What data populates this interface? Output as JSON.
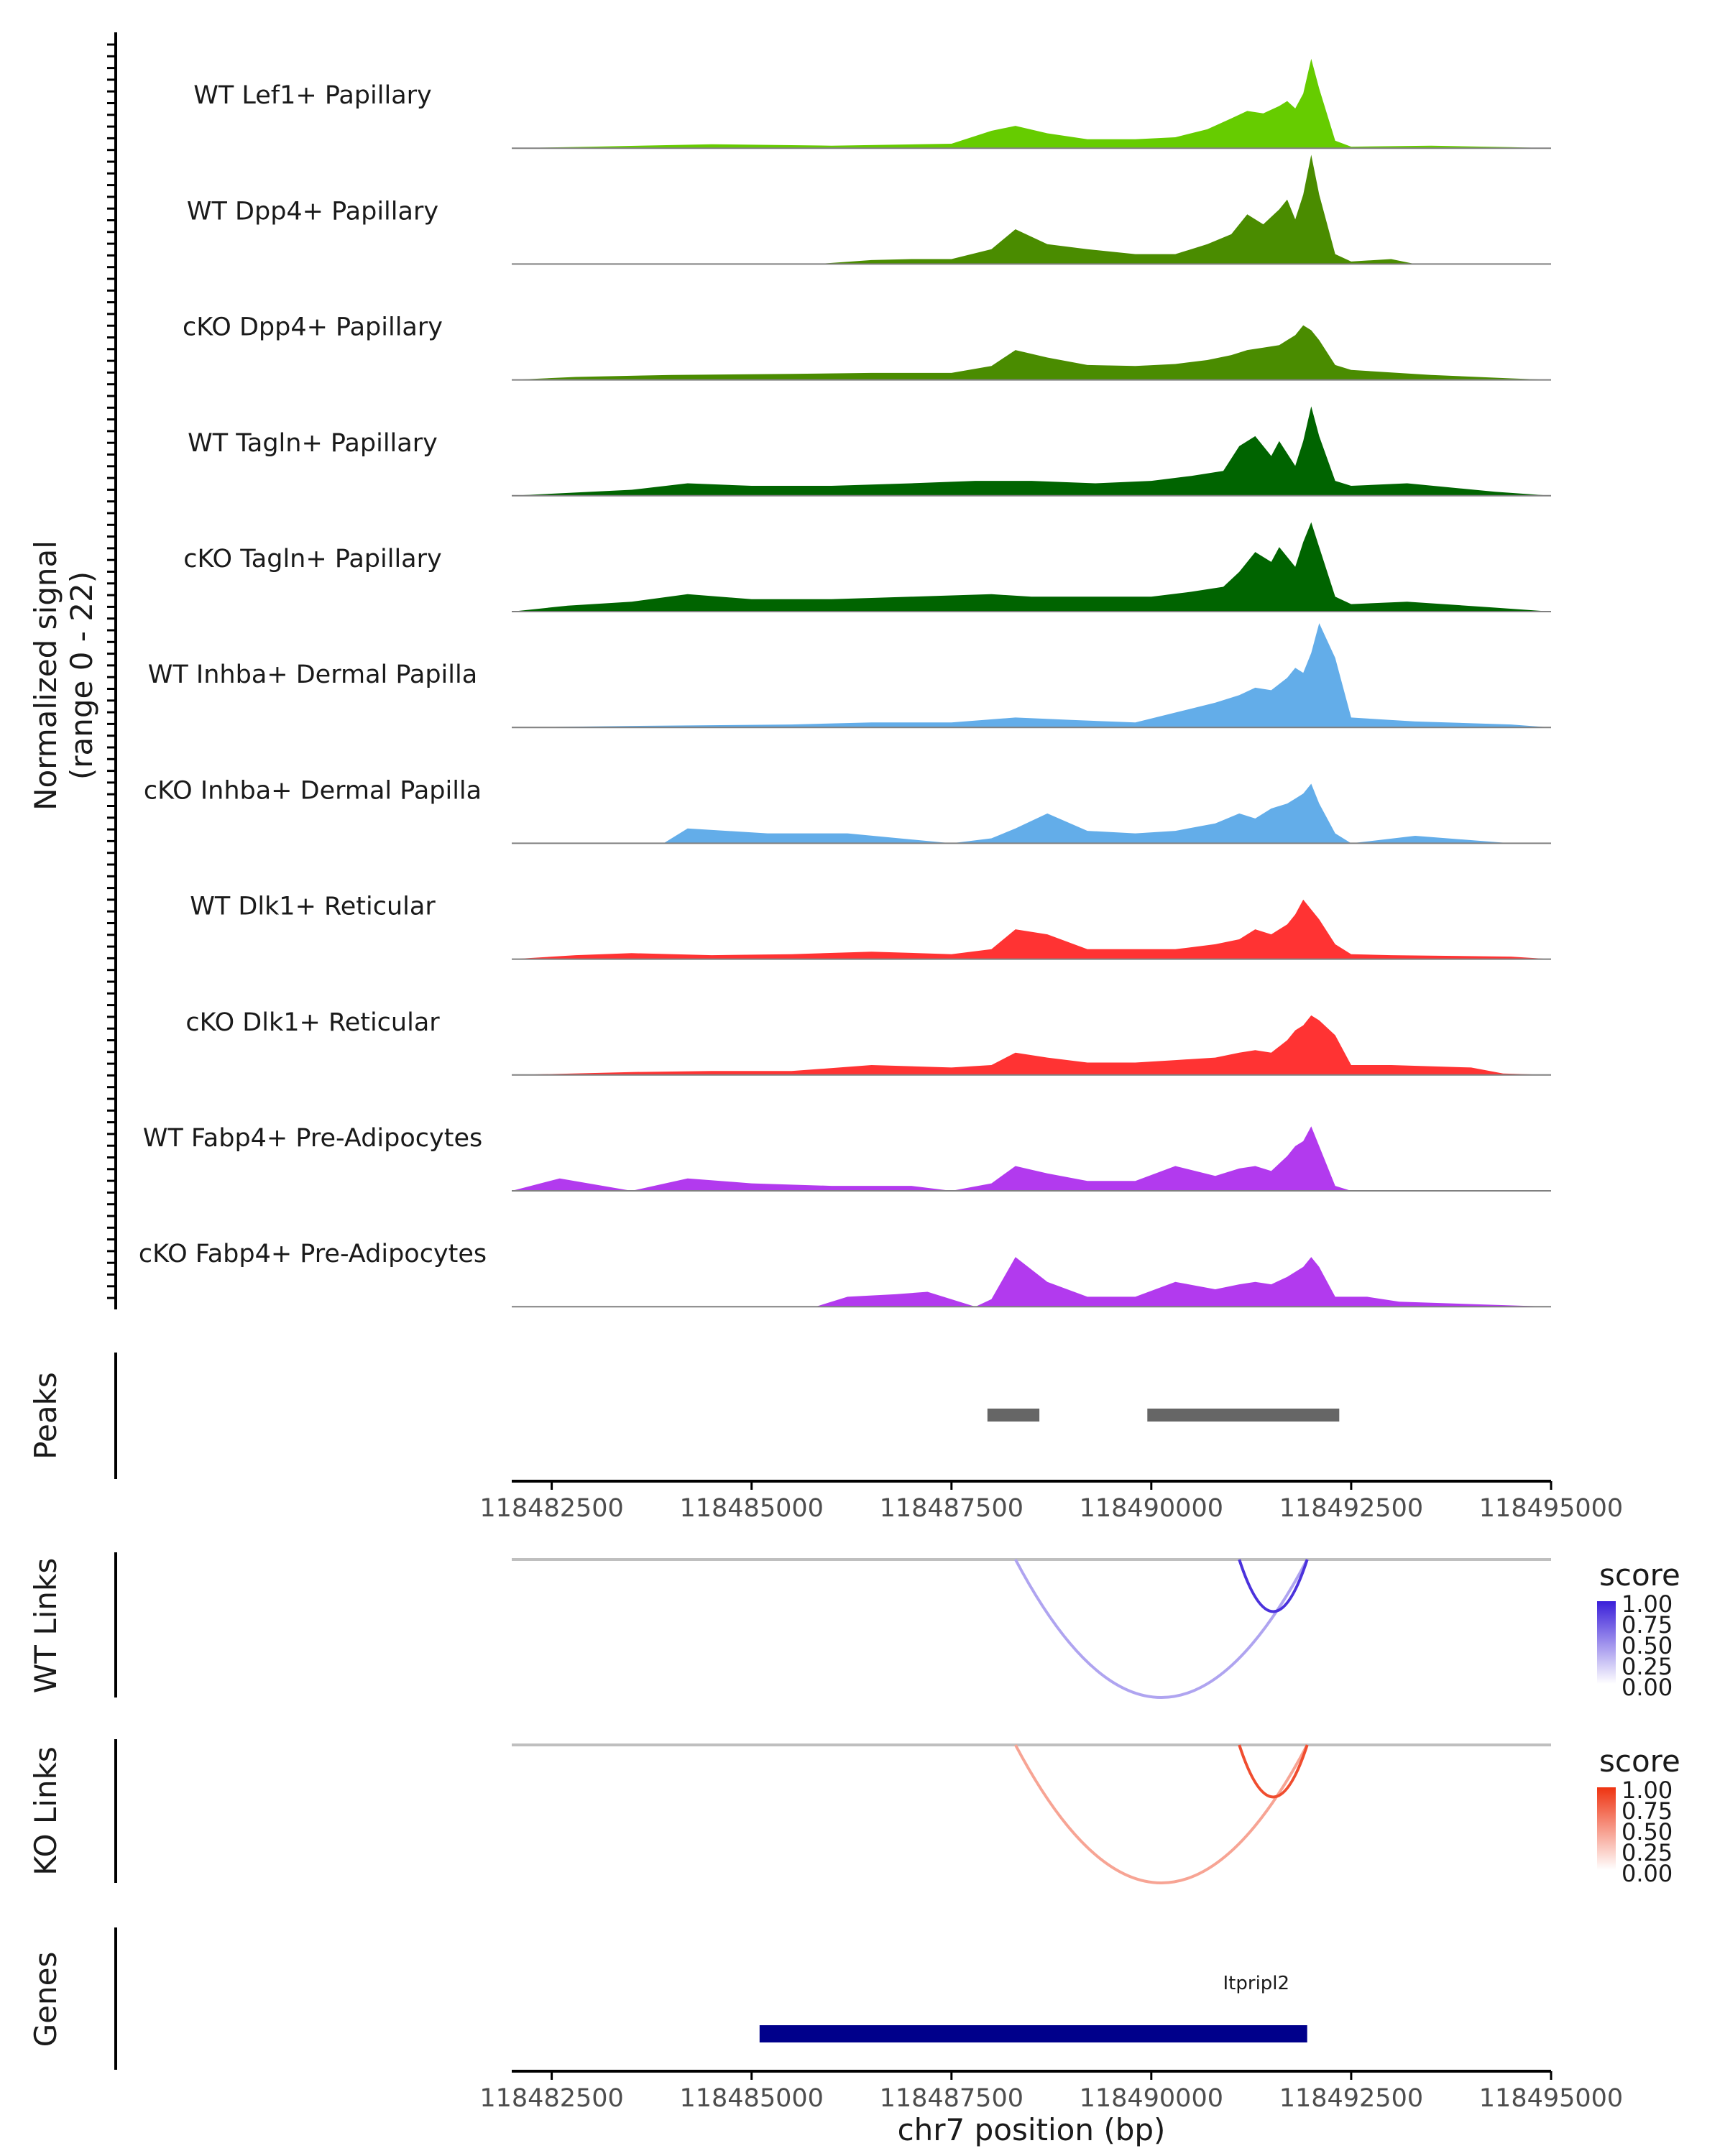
{
  "chart_data": {
    "type": "area",
    "title": "",
    "xlabel": "chr7 position (bp)",
    "x_ticks": [
      "118482500",
      "118485000",
      "118487500",
      "118490000",
      "118492500",
      "118495000"
    ],
    "x_tick_values": [
      118482500,
      118485000,
      118487500,
      118490000,
      118492500,
      118495000
    ],
    "xlim": [
      118482000,
      118495000
    ],
    "coverage": {
      "ylabel_line1": "Normalized signal",
      "ylabel_line2": "(range 0 - 22)",
      "ylim": [
        0,
        22
      ],
      "tracks": [
        {
          "name": "WT Lef1+ Papillary",
          "color": "#66cc00",
          "x": [
            118482000,
            118483000,
            118484500,
            118486000,
            118487500,
            118488000,
            118488300,
            118488700,
            118489200,
            118489800,
            118490300,
            118490700,
            118491000,
            118491200,
            118491400,
            118491600,
            118491700,
            118491800,
            118491900,
            118492000,
            118492100,
            118492300,
            118492500,
            118493500,
            118494500,
            118495000
          ],
          "values": [
            0,
            0.3,
            0.8,
            0.5,
            0.9,
            3.5,
            4.5,
            3,
            1.8,
            1.8,
            2.2,
            3.8,
            6,
            7.5,
            7,
            8.5,
            9.5,
            8,
            11,
            18,
            12,
            1.5,
            0.3,
            0.5,
            0.2,
            0
          ]
        },
        {
          "name": "WT Dpp4+ Papillary",
          "color": "#4a8c00",
          "x": [
            118482000,
            118485800,
            118486500,
            118487000,
            118487500,
            118488000,
            118488300,
            118488700,
            118489200,
            118489800,
            118490300,
            118490700,
            118491000,
            118491200,
            118491400,
            118491600,
            118491700,
            118491800,
            118491900,
            118492000,
            118492100,
            118492300,
            118492500,
            118493000,
            118493300,
            118495000
          ],
          "values": [
            0,
            0,
            0.8,
            1,
            1,
            3,
            7,
            4,
            3,
            2,
            2,
            4,
            6,
            10,
            8,
            11,
            13,
            9,
            14,
            22,
            14,
            2,
            0.5,
            1,
            0,
            0
          ]
        },
        {
          "name": "cKO Dpp4+ Papillary",
          "color": "#4a8c00",
          "x": [
            118482000,
            118482800,
            118484000,
            118485500,
            118486500,
            118487500,
            118488000,
            118488300,
            118488700,
            118489200,
            118489800,
            118490300,
            118490700,
            118491000,
            118491200,
            118491400,
            118491600,
            118491700,
            118491800,
            118491900,
            118492000,
            118492100,
            118492300,
            118492500,
            118493500,
            118494500,
            118495000
          ],
          "values": [
            0,
            0.6,
            1,
            1.2,
            1.4,
            1.4,
            2.8,
            6,
            4.5,
            3,
            2.8,
            3.2,
            4,
            5,
            6,
            6.5,
            7,
            8,
            9,
            11,
            10,
            8,
            3,
            2,
            1,
            0.3,
            0
          ]
        },
        {
          "name": "WT Tagln+ Papillary",
          "color": "#006400",
          "x": [
            118482000,
            118483500,
            118484200,
            118485000,
            118486000,
            118487000,
            118487800,
            118488500,
            118489300,
            118490000,
            118490500,
            118490900,
            118491100,
            118491300,
            118491500,
            118491600,
            118491800,
            118491900,
            118492000,
            118492100,
            118492300,
            118492500,
            118493200,
            118494300,
            118495000
          ],
          "values": [
            0,
            1.2,
            2.5,
            2,
            2,
            2.5,
            3,
            3,
            2.5,
            3,
            4,
            5,
            10,
            12,
            8,
            11,
            6,
            11,
            18,
            12,
            3,
            2,
            2.5,
            0.8,
            0
          ]
        },
        {
          "name": "cKO Tagln+ Papillary",
          "color": "#006400",
          "x": [
            118482000,
            118482700,
            118483500,
            118484200,
            118485000,
            118486000,
            118487000,
            118488000,
            118488500,
            118489300,
            118490000,
            118490500,
            118490900,
            118491100,
            118491300,
            118491500,
            118491600,
            118491800,
            118491900,
            118492000,
            118492100,
            118492300,
            118492500,
            118493200,
            118494300,
            118495000
          ],
          "values": [
            0,
            1.2,
            2,
            3.5,
            2.5,
            2.5,
            3,
            3.5,
            3,
            3,
            3,
            4,
            5,
            8,
            12,
            10,
            13,
            9,
            14,
            18,
            13,
            3,
            1.5,
            2,
            0.8,
            0
          ]
        },
        {
          "name": "WT Inhba+ Dermal Papilla",
          "color": "#63ade9",
          "x": [
            118482000,
            118483500,
            118485500,
            118486500,
            118487500,
            118488300,
            118489000,
            118489800,
            118490300,
            118490800,
            118491100,
            118491300,
            118491500,
            118491700,
            118491800,
            118491900,
            118492000,
            118492100,
            118492300,
            118492500,
            118493300,
            118494500,
            118495000
          ],
          "values": [
            0,
            0.3,
            0.6,
            1,
            1,
            2,
            1.5,
            1,
            3,
            5,
            6.5,
            8,
            7.5,
            10,
            12,
            11,
            15,
            21,
            14,
            2,
            1.2,
            0.6,
            0
          ]
        },
        {
          "name": "cKO Inhba+ Dermal Papilla",
          "color": "#63ade9",
          "x": [
            118482000,
            118483900,
            118484200,
            118485200,
            118486200,
            118487500,
            118488000,
            118488300,
            118488700,
            118489200,
            118489800,
            118490300,
            118490800,
            118491100,
            118491300,
            118491500,
            118491700,
            118491800,
            118491900,
            118492000,
            118492100,
            118492300,
            118492500,
            118493300,
            118494500,
            118495000
          ],
          "values": [
            0,
            0,
            3,
            2,
            2,
            0,
            1,
            3,
            6,
            2.5,
            2,
            2.5,
            4,
            6,
            5,
            7,
            8,
            9,
            10,
            12,
            8,
            2,
            0,
            1.5,
            0,
            0
          ]
        },
        {
          "name": "WT Dlk1+ Reticular",
          "color": "#ff3333",
          "x": [
            118482000,
            118482800,
            118483500,
            118484500,
            118485500,
            118486500,
            118487500,
            118488000,
            118488300,
            118488700,
            118489200,
            118489800,
            118490300,
            118490800,
            118491100,
            118491300,
            118491500,
            118491700,
            118491800,
            118491900,
            118492000,
            118492100,
            118492300,
            118492500,
            118493000,
            118494500,
            118495000
          ],
          "values": [
            0,
            0.8,
            1.2,
            0.8,
            1,
            1.5,
            1,
            2,
            6,
            5,
            2,
            2,
            2,
            3,
            4,
            6,
            5,
            7,
            9,
            12,
            10,
            8,
            3,
            1,
            0.8,
            0.5,
            0
          ]
        },
        {
          "name": "cKO Dlk1+ Reticular",
          "color": "#ff3333",
          "x": [
            118482000,
            118483500,
            118484500,
            118485500,
            118486500,
            118487500,
            118488000,
            118488300,
            118488700,
            118489200,
            118489800,
            118490300,
            118490800,
            118491100,
            118491300,
            118491500,
            118491700,
            118491800,
            118491900,
            118492000,
            118492100,
            118492300,
            118492500,
            118493000,
            118494000,
            118494400,
            118495000
          ],
          "values": [
            0,
            0.6,
            0.8,
            0.8,
            2,
            1.5,
            2,
            4.5,
            3.5,
            2.5,
            2.5,
            3,
            3.5,
            4.5,
            5,
            4.5,
            7,
            9,
            10,
            12,
            11,
            8,
            2,
            2,
            1.5,
            0.3,
            0
          ]
        },
        {
          "name": "WT Fabp4+ Pre-Adipocytes",
          "color": "#b23aee",
          "x": [
            118482000,
            118482600,
            118483500,
            118484200,
            118485000,
            118486000,
            118487000,
            118487500,
            118488000,
            118488300,
            118488700,
            118489200,
            118489800,
            118490300,
            118490800,
            118491100,
            118491300,
            118491500,
            118491700,
            118491800,
            118491900,
            118492000,
            118492100,
            118492300,
            118492500,
            118495000
          ],
          "values": [
            0,
            2.5,
            0,
            2.5,
            1.5,
            1,
            1,
            0,
            1.5,
            5,
            3.5,
            2,
            2,
            5,
            3,
            4.5,
            5,
            4,
            7,
            9,
            10,
            13,
            9,
            1,
            0,
            0
          ]
        },
        {
          "name": "cKO Fabp4+ Pre-Adipocytes",
          "color": "#b23aee",
          "x": [
            118482000,
            118485800,
            118486200,
            118486800,
            118487200,
            118487800,
            118488000,
            118488300,
            118488700,
            118489200,
            118489800,
            118490300,
            118490800,
            118491100,
            118491300,
            118491500,
            118491700,
            118491800,
            118491900,
            118492000,
            118492100,
            118492300,
            118492700,
            118493100,
            118495000
          ],
          "values": [
            0,
            0,
            2,
            2.5,
            3,
            0,
            1.5,
            10,
            5,
            2,
            2,
            5,
            3.5,
            4.5,
            5,
            4.5,
            6,
            7,
            8,
            10,
            8,
            2,
            2,
            1,
            0
          ]
        }
      ]
    },
    "peaks": {
      "label": "Peaks",
      "regions": [
        [
          118487950,
          118488600
        ],
        [
          118489950,
          118492350
        ]
      ]
    },
    "wt_links": {
      "label": "WT Links",
      "legend_title": "score",
      "legend_ticks": [
        "1.00",
        "0.75",
        "0.50",
        "0.25",
        "0.00"
      ],
      "color_high": "#3a1fd9",
      "color_low": "#ffffff",
      "arcs": [
        {
          "start": 118488300,
          "end": 118491950,
          "score": 0.3
        },
        {
          "start": 118491100,
          "end": 118491950,
          "score": 0.9
        }
      ]
    },
    "ko_links": {
      "label": "KO Links",
      "legend_title": "score",
      "legend_ticks": [
        "1.00",
        "0.75",
        "0.50",
        "0.25",
        "0.00"
      ],
      "color_high": "#ee3311",
      "color_low": "#ffffff",
      "arcs": [
        {
          "start": 118488300,
          "end": 118491950,
          "score": 0.35
        },
        {
          "start": 118491100,
          "end": 118491950,
          "score": 0.85
        }
      ]
    },
    "genes": {
      "label": "Genes",
      "items": [
        {
          "name": "Itpripl2",
          "start": 118485100,
          "end": 118491950,
          "color": "#00008b"
        }
      ]
    }
  }
}
